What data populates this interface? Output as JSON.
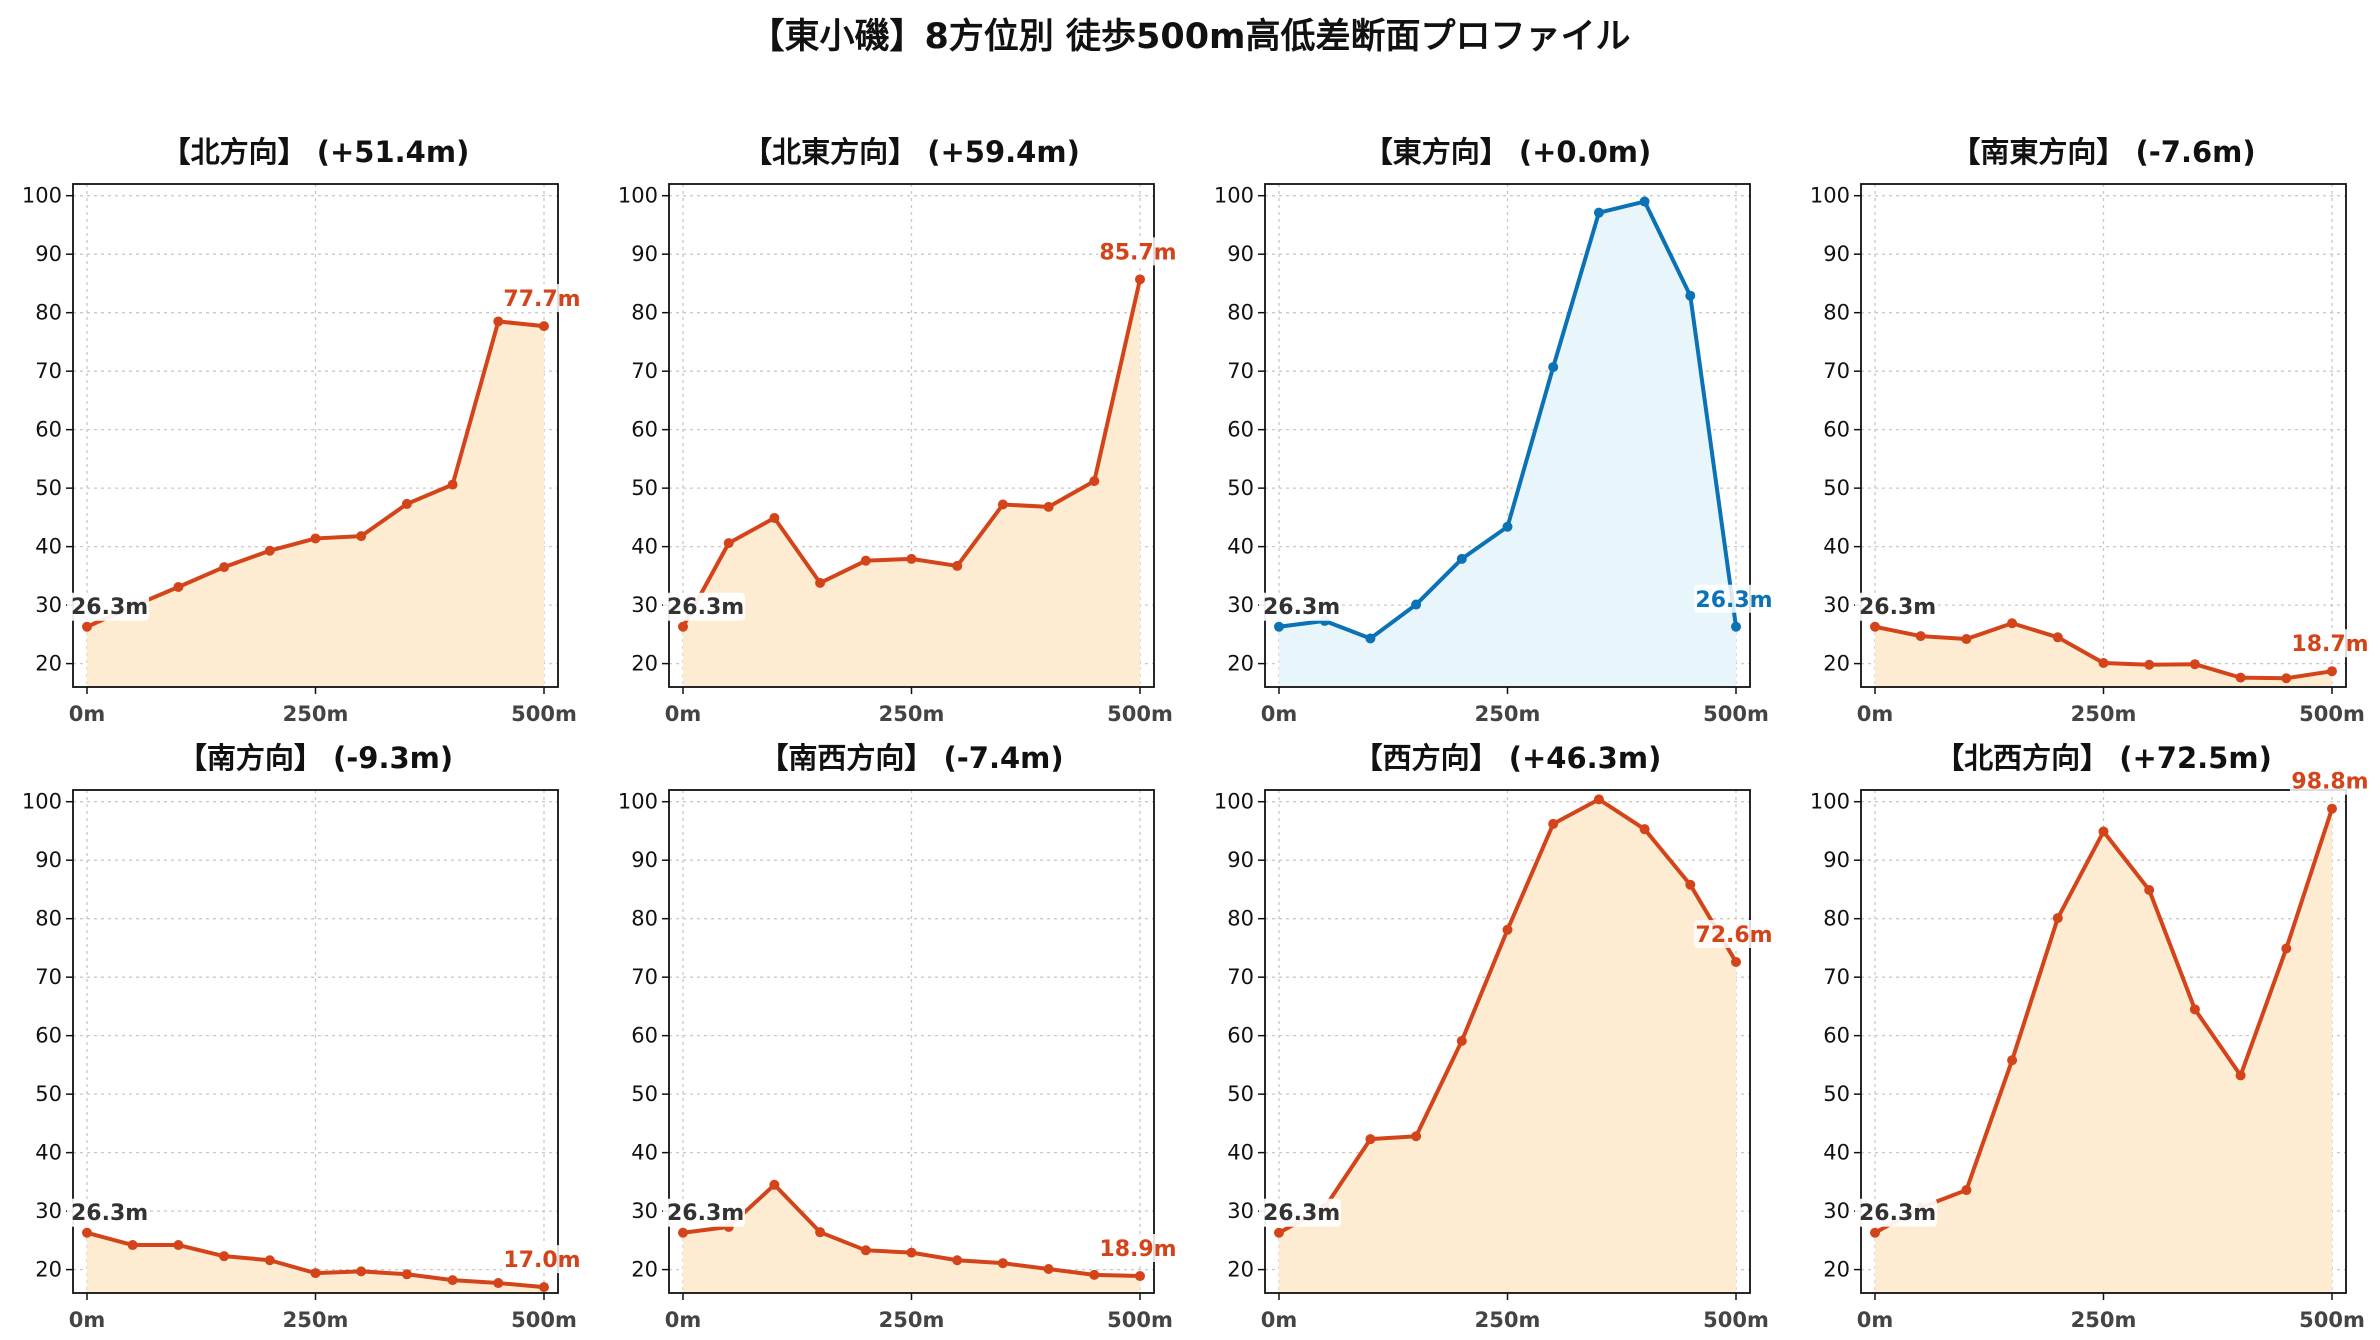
{
  "title": "【東小磯】8方位別 徒歩500m高低差断面プロファイル",
  "colors": {
    "up_line": "#d4441a",
    "up_fill": "#fdebcf",
    "flat_line": "#0a72b5",
    "flat_fill": "#e7f5fc",
    "start_label": "#333333",
    "grid": "#c8c8c8"
  },
  "chart_data": [
    {
      "type": "area",
      "title": "【北方向】 (+51.4m)",
      "x": [
        0,
        50,
        100,
        150,
        200,
        250,
        300,
        350,
        400,
        450,
        500
      ],
      "values": [
        26.3,
        29.8,
        33.1,
        36.5,
        39.3,
        41.4,
        41.8,
        47.3,
        50.6,
        78.5,
        77.7
      ],
      "xticks": [
        "0m",
        "250m",
        "500m"
      ],
      "yticks": [
        "20",
        "30",
        "40",
        "50",
        "60",
        "70",
        "80",
        "90",
        "100"
      ],
      "ylim": [
        16,
        102
      ],
      "start_label": "26.3m",
      "end_label": "77.7m",
      "color": "up"
    },
    {
      "type": "area",
      "title": "【北東方向】 (+59.4m)",
      "x": [
        0,
        50,
        100,
        150,
        200,
        250,
        300,
        350,
        400,
        450,
        500
      ],
      "values": [
        26.3,
        40.6,
        44.9,
        33.8,
        37.6,
        37.9,
        36.7,
        47.2,
        46.8,
        51.2,
        85.7
      ],
      "xticks": [
        "0m",
        "250m",
        "500m"
      ],
      "yticks": [
        "20",
        "30",
        "40",
        "50",
        "60",
        "70",
        "80",
        "90",
        "100"
      ],
      "ylim": [
        16,
        102
      ],
      "start_label": "26.3m",
      "end_label": "85.7m",
      "color": "up"
    },
    {
      "type": "area",
      "title": "【東方向】 (+0.0m)",
      "x": [
        0,
        50,
        100,
        150,
        200,
        250,
        300,
        350,
        400,
        450,
        500
      ],
      "values": [
        26.3,
        27.3,
        24.3,
        30.1,
        37.9,
        43.4,
        70.7,
        97.1,
        99.0,
        82.9,
        26.3
      ],
      "xticks": [
        "0m",
        "250m",
        "500m"
      ],
      "yticks": [
        "20",
        "30",
        "40",
        "50",
        "60",
        "70",
        "80",
        "90",
        "100"
      ],
      "ylim": [
        16,
        102
      ],
      "start_label": "26.3m",
      "end_label": "26.3m",
      "color": "flat"
    },
    {
      "type": "area",
      "title": "【南東方向】 (-7.6m)",
      "x": [
        0,
        50,
        100,
        150,
        200,
        250,
        300,
        350,
        400,
        450,
        500
      ],
      "values": [
        26.3,
        24.7,
        24.2,
        26.9,
        24.5,
        20.1,
        19.8,
        19.9,
        17.6,
        17.5,
        18.7
      ],
      "xticks": [
        "0m",
        "250m",
        "500m"
      ],
      "yticks": [
        "20",
        "30",
        "40",
        "50",
        "60",
        "70",
        "80",
        "90",
        "100"
      ],
      "ylim": [
        16,
        102
      ],
      "start_label": "26.3m",
      "end_label": "18.7m",
      "color": "up"
    },
    {
      "type": "area",
      "title": "【南方向】 (-9.3m)",
      "x": [
        0,
        50,
        100,
        150,
        200,
        250,
        300,
        350,
        400,
        450,
        500
      ],
      "values": [
        26.3,
        24.2,
        24.2,
        22.3,
        21.6,
        19.4,
        19.7,
        19.2,
        18.2,
        17.7,
        17.0
      ],
      "xticks": [
        "0m",
        "250m",
        "500m"
      ],
      "yticks": [
        "20",
        "30",
        "40",
        "50",
        "60",
        "70",
        "80",
        "90",
        "100"
      ],
      "ylim": [
        16,
        102
      ],
      "start_label": "26.3m",
      "end_label": "17.0m",
      "color": "up"
    },
    {
      "type": "area",
      "title": "【南西方向】 (-7.4m)",
      "x": [
        0,
        50,
        100,
        150,
        200,
        250,
        300,
        350,
        400,
        450,
        500
      ],
      "values": [
        26.3,
        27.3,
        34.5,
        26.4,
        23.3,
        22.9,
        21.6,
        21.1,
        20.1,
        19.1,
        18.9
      ],
      "xticks": [
        "0m",
        "250m",
        "500m"
      ],
      "yticks": [
        "20",
        "30",
        "40",
        "50",
        "60",
        "70",
        "80",
        "90",
        "100"
      ],
      "ylim": [
        16,
        102
      ],
      "start_label": "26.3m",
      "end_label": "18.9m",
      "color": "up"
    },
    {
      "type": "area",
      "title": "【西方向】 (+46.3m)",
      "x": [
        0,
        50,
        100,
        150,
        200,
        250,
        300,
        350,
        400,
        450,
        500
      ],
      "values": [
        26.3,
        30.6,
        42.3,
        42.8,
        59.1,
        78.1,
        96.2,
        100.4,
        95.3,
        85.8,
        72.6
      ],
      "xticks": [
        "0m",
        "250m",
        "500m"
      ],
      "yticks": [
        "20",
        "30",
        "40",
        "50",
        "60",
        "70",
        "80",
        "90",
        "100"
      ],
      "ylim": [
        16,
        102
      ],
      "start_label": "26.3m",
      "end_label": "72.6m",
      "color": "up"
    },
    {
      "type": "area",
      "title": "【北西方向】 (+72.5m)",
      "x": [
        0,
        50,
        100,
        150,
        200,
        250,
        300,
        350,
        400,
        450,
        500
      ],
      "values": [
        26.3,
        30.6,
        33.6,
        55.8,
        80.1,
        94.9,
        84.9,
        64.5,
        53.2,
        74.9,
        98.8
      ],
      "xticks": [
        "0m",
        "250m",
        "500m"
      ],
      "yticks": [
        "20",
        "30",
        "40",
        "50",
        "60",
        "70",
        "80",
        "90",
        "100"
      ],
      "ylim": [
        16,
        102
      ],
      "start_label": "26.3m",
      "end_label": "98.8m",
      "color": "up"
    }
  ]
}
